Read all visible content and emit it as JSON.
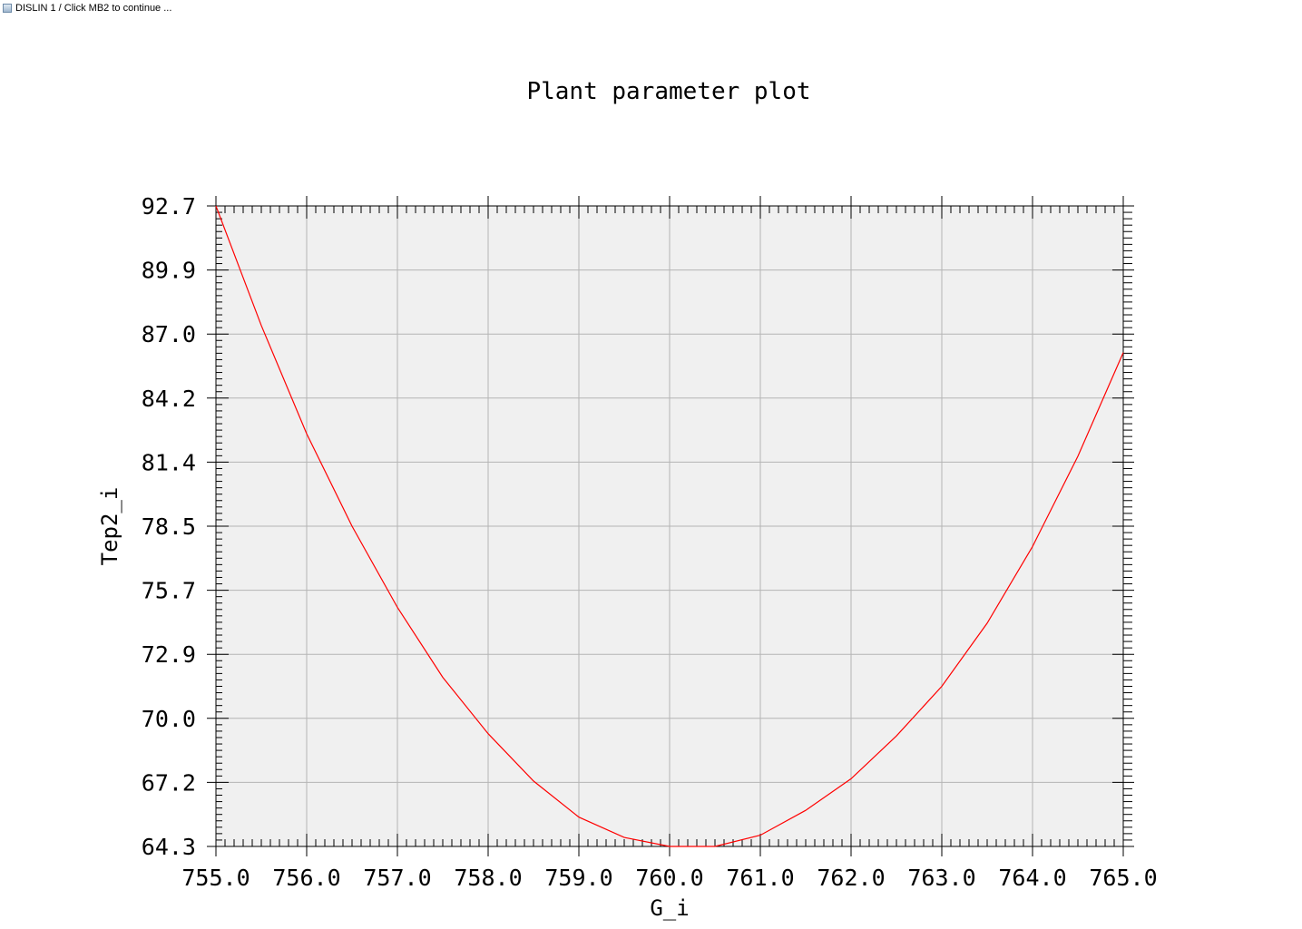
{
  "window": {
    "title": "DISLIN 1 / Click MB2 to continue ...",
    "icon": "dislin-app-icon"
  },
  "colors": {
    "plot_background": "#f0f0f0",
    "grid": "#b4b4b4",
    "axes": "#000000",
    "series": "#ff0000"
  },
  "chart_data": {
    "type": "line",
    "title": "Plant parameter plot",
    "xlabel": "G_i",
    "ylabel": "Tep2_i",
    "xlim": [
      755.0,
      765.0
    ],
    "ylim": [
      64.3,
      92.7
    ],
    "xticks": [
      "755.0",
      "756.0",
      "757.0",
      "758.0",
      "759.0",
      "760.0",
      "761.0",
      "762.0",
      "763.0",
      "764.0",
      "765.0"
    ],
    "yticks": [
      "64.3",
      "67.2",
      "70.0",
      "72.9",
      "75.7",
      "78.5",
      "81.4",
      "84.2",
      "87.0",
      "89.9",
      "92.7"
    ],
    "grid": true,
    "series": [
      {
        "x": [
          755.0,
          755.5,
          756.0,
          756.5,
          757.0,
          757.5,
          758.0,
          758.5,
          759.0,
          759.5,
          760.0,
          760.5,
          761.0,
          761.5,
          762.0,
          762.5,
          763.0,
          763.5,
          764.0,
          764.5,
          765.0
        ],
        "y": [
          92.7,
          87.4,
          82.6,
          78.5,
          74.9,
          71.8,
          69.3,
          67.2,
          65.6,
          64.7,
          64.3,
          64.3,
          64.8,
          65.9,
          67.3,
          69.2,
          71.4,
          74.2,
          77.6,
          81.6,
          86.2
        ]
      }
    ]
  }
}
